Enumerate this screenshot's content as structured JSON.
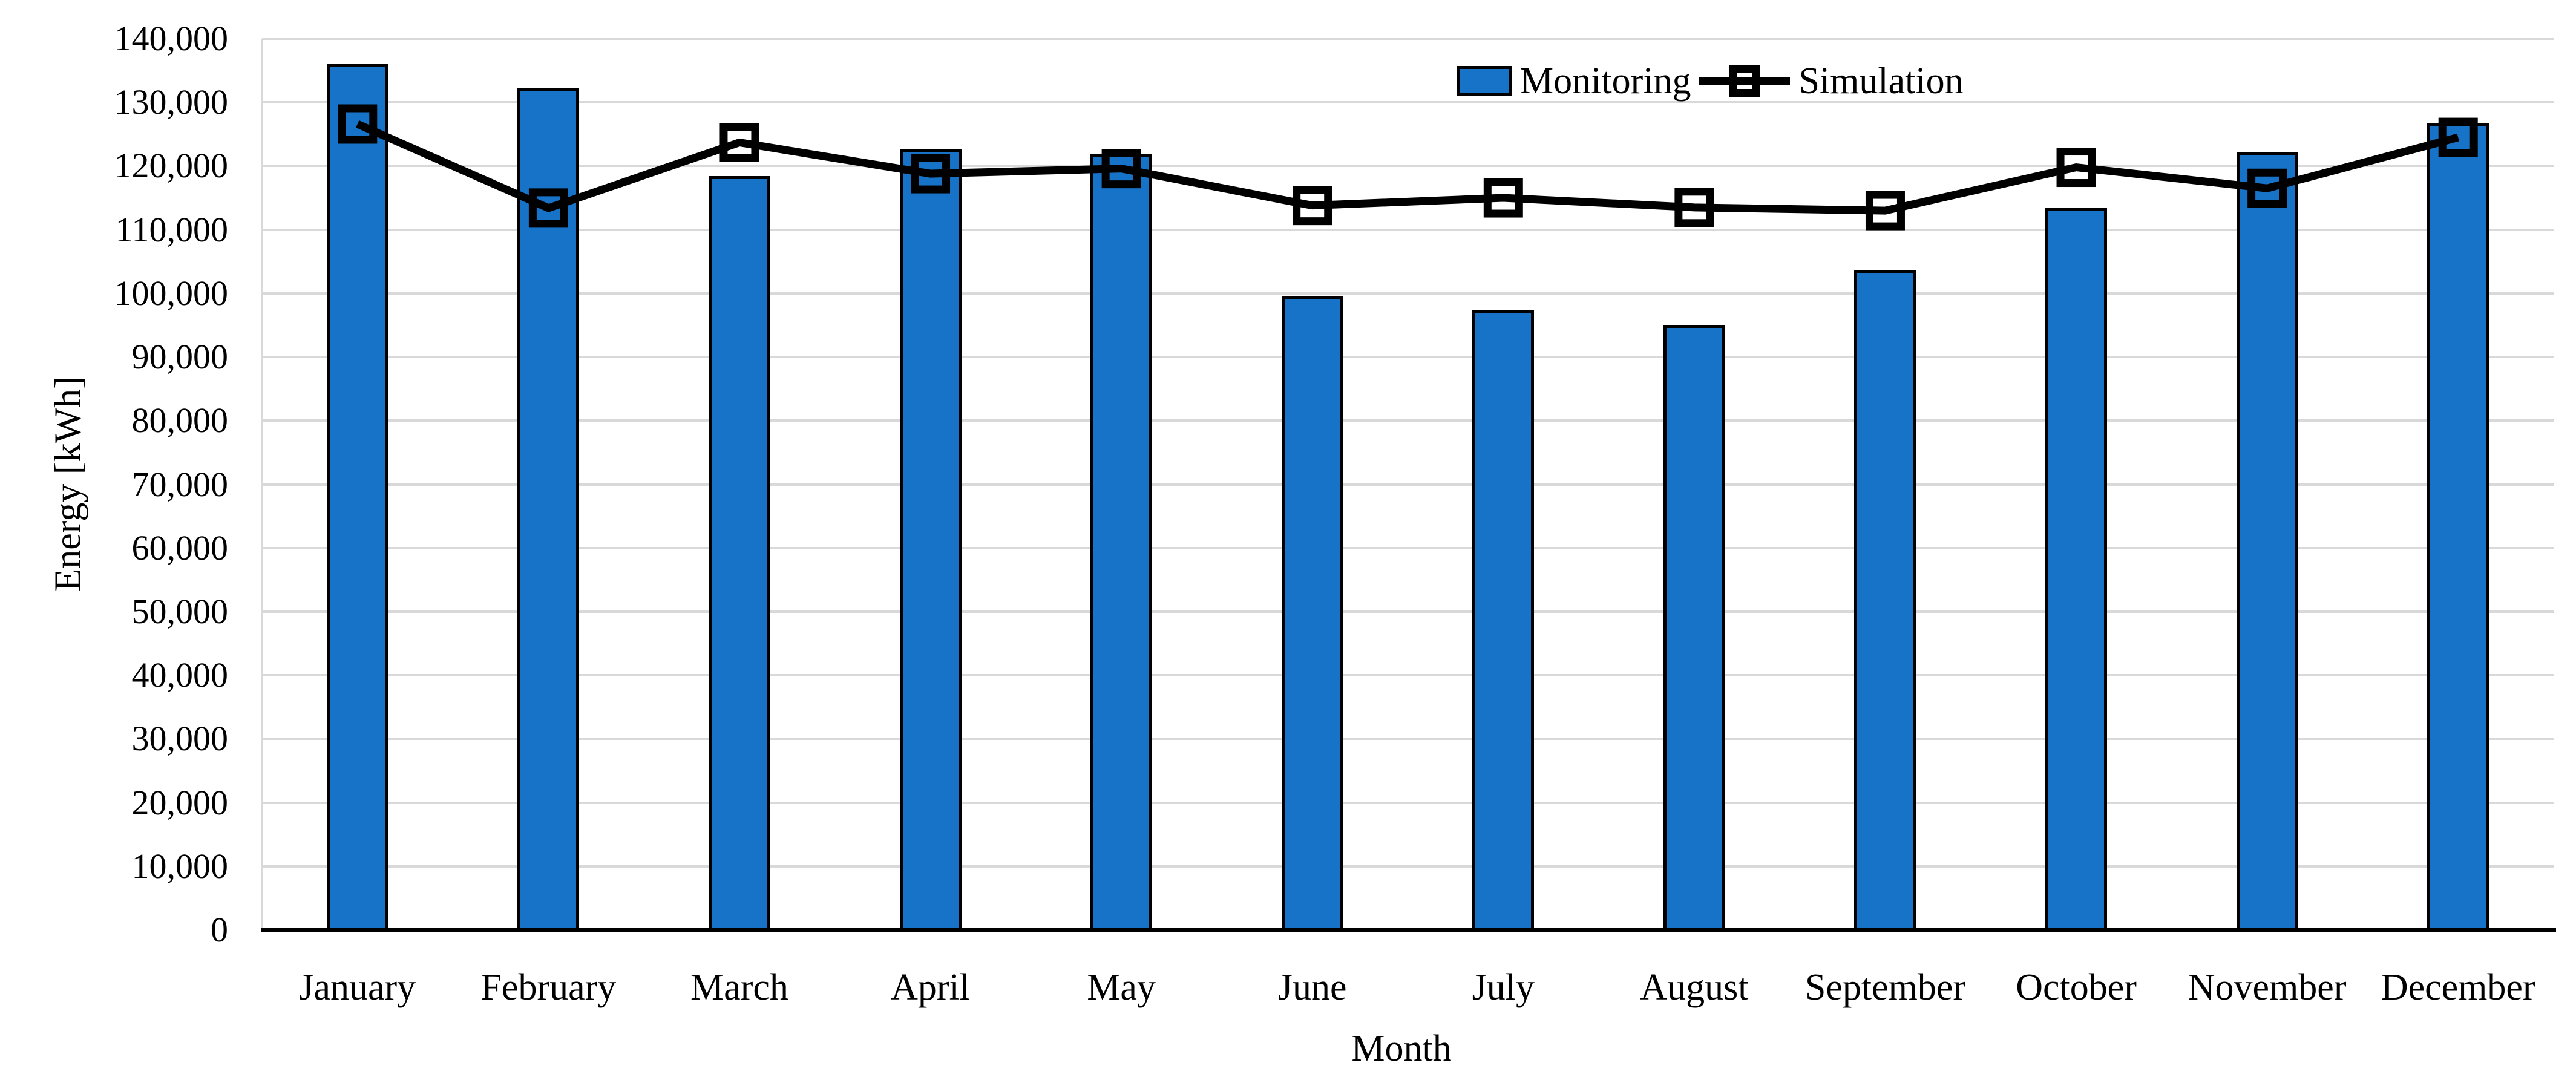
{
  "chart_data": {
    "type": "bar",
    "subtype": "bar-and-line-combo",
    "title": "",
    "xlabel": "Month",
    "ylabel": "Energy [kWh]",
    "categories": [
      "January",
      "February",
      "March",
      "April",
      "May",
      "June",
      "July",
      "August",
      "September",
      "October",
      "November",
      "December"
    ],
    "series": [
      {
        "name": "Monitoring",
        "type": "bar",
        "color": "#1773C8",
        "border_color": "#000000",
        "values": [
          136000,
          132300,
          118400,
          122600,
          121900,
          99600,
          97300,
          95000,
          103700,
          113500,
          122200,
          126800
        ]
      },
      {
        "name": "Simulation",
        "type": "line",
        "color": "#000000",
        "marker": "hollow-square",
        "values": [
          126600,
          113400,
          123700,
          118800,
          119600,
          113800,
          115000,
          113500,
          113000,
          119800,
          116500,
          124500
        ]
      }
    ],
    "ylim": [
      0,
      140000
    ],
    "ytick_step": 10000,
    "y_tick_labels": [
      "0",
      "10,000",
      "20,000",
      "30,000",
      "40,000",
      "50,000",
      "60,000",
      "70,000",
      "80,000",
      "90,000",
      "100,000",
      "110,000",
      "120,000",
      "130,000",
      "140,000"
    ],
    "grid": true,
    "gridline_color": "#D9D9D9",
    "axis_line_color": "#000000",
    "background_color": "#FFFFFF",
    "legend_position": "top-right-inside"
  }
}
